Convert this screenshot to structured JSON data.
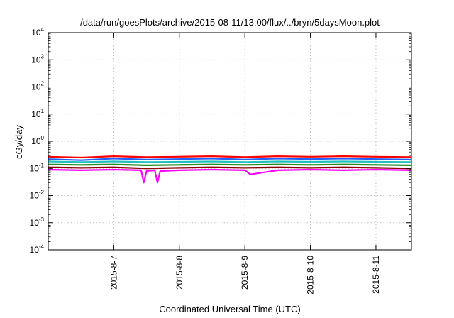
{
  "chart_data": {
    "type": "line",
    "title": "/data/run/goesPlots/archive/2015-08-11/13:00/flux/../bryn/5daysMoon.plot",
    "xlabel": "Coordinated Universal Time (UTC)",
    "ylabel": "cGy/day",
    "y_scale": "log",
    "ylim": [
      0.0001,
      10000
    ],
    "y_ticks": [
      {
        "base": "10",
        "exp": "-4",
        "value": 0.0001
      },
      {
        "base": "10",
        "exp": "-3",
        "value": 0.001
      },
      {
        "base": "10",
        "exp": "-2",
        "value": 0.01
      },
      {
        "base": "10",
        "exp": "-1",
        "value": 0.1
      },
      {
        "base": "10",
        "exp": "0",
        "value": 1
      },
      {
        "base": "10",
        "exp": "1",
        "value": 10
      },
      {
        "base": "10",
        "exp": "2",
        "value": 100
      },
      {
        "base": "10",
        "exp": "3",
        "value": 1000
      },
      {
        "base": "10",
        "exp": "4",
        "value": 10000
      }
    ],
    "xlim": [
      "2015-08-06 00:00",
      "2015-08-11 13:00"
    ],
    "x_ticks": [
      "2015-8-7",
      "2015-8-8",
      "2015-8-9",
      "2015-8-10",
      "2015-8-11"
    ],
    "grid": true,
    "series": [
      {
        "color": "#ff00ff",
        "x": [
          "2015-08-06 00:00",
          "2015-08-06 12:00",
          "2015-08-07 00:00",
          "2015-08-07 10:00",
          "2015-08-07 11:00",
          "2015-08-07 12:00",
          "2015-08-07 15:00",
          "2015-08-07 16:00",
          "2015-08-07 17:00",
          "2015-08-08 00:00",
          "2015-08-08 12:00",
          "2015-08-09 00:00",
          "2015-08-09 02:00",
          "2015-08-09 12:00",
          "2015-08-10 00:00",
          "2015-08-10 12:00",
          "2015-08-11 00:00",
          "2015-08-11 13:00"
        ],
        "y": [
          0.09,
          0.085,
          0.09,
          0.085,
          0.03,
          0.08,
          0.085,
          0.03,
          0.08,
          0.085,
          0.09,
          0.085,
          0.06,
          0.085,
          0.09,
          0.085,
          0.09,
          0.085
        ]
      },
      {
        "color": "#8b0000",
        "x": [
          "2015-08-06 00:00",
          "2015-08-06 12:00",
          "2015-08-07 00:00",
          "2015-08-07 12:00",
          "2015-08-08 00:00",
          "2015-08-08 12:00",
          "2015-08-09 00:00",
          "2015-08-09 12:00",
          "2015-08-10 00:00",
          "2015-08-10 12:00",
          "2015-08-11 00:00",
          "2015-08-11 13:00"
        ],
        "y": [
          0.11,
          0.105,
          0.11,
          0.1,
          0.105,
          0.11,
          0.105,
          0.11,
          0.105,
          0.11,
          0.105,
          0.1
        ]
      },
      {
        "color": "#228b22",
        "x": [
          "2015-08-06 00:00",
          "2015-08-06 12:00",
          "2015-08-07 00:00",
          "2015-08-07 12:00",
          "2015-08-08 00:00",
          "2015-08-08 12:00",
          "2015-08-09 00:00",
          "2015-08-09 12:00",
          "2015-08-10 00:00",
          "2015-08-10 12:00",
          "2015-08-11 00:00",
          "2015-08-11 13:00"
        ],
        "y": [
          0.14,
          0.135,
          0.14,
          0.13,
          0.135,
          0.14,
          0.135,
          0.14,
          0.135,
          0.14,
          0.135,
          0.13
        ]
      },
      {
        "color": "#20c0c0",
        "x": [
          "2015-08-06 00:00",
          "2015-08-06 12:00",
          "2015-08-07 00:00",
          "2015-08-07 12:00",
          "2015-08-08 00:00",
          "2015-08-08 12:00",
          "2015-08-09 00:00",
          "2015-08-09 12:00",
          "2015-08-10 00:00",
          "2015-08-10 12:00",
          "2015-08-11 00:00",
          "2015-08-11 13:00"
        ],
        "y": [
          0.18,
          0.17,
          0.18,
          0.17,
          0.175,
          0.18,
          0.17,
          0.18,
          0.175,
          0.18,
          0.175,
          0.17
        ]
      },
      {
        "color": "#ff0000",
        "x": [
          "2015-08-06 00:00",
          "2015-08-06 12:00",
          "2015-08-07 00:00",
          "2015-08-07 12:00",
          "2015-08-08 00:00",
          "2015-08-08 12:00",
          "2015-08-09 00:00",
          "2015-08-09 12:00",
          "2015-08-10 00:00",
          "2015-08-10 12:00",
          "2015-08-11 00:00",
          "2015-08-11 13:00"
        ],
        "y": [
          0.27,
          0.25,
          0.28,
          0.26,
          0.27,
          0.28,
          0.26,
          0.28,
          0.27,
          0.28,
          0.27,
          0.26
        ]
      },
      {
        "color": "#2060ff",
        "x": [
          "2015-08-06 00:00",
          "2015-08-06 12:00",
          "2015-08-07 00:00",
          "2015-08-07 12:00",
          "2015-08-08 00:00",
          "2015-08-08 12:00",
          "2015-08-09 00:00",
          "2015-08-09 12:00",
          "2015-08-10 00:00",
          "2015-08-10 12:00",
          "2015-08-11 00:00",
          "2015-08-11 13:00"
        ],
        "y": [
          0.22,
          0.2,
          0.23,
          0.21,
          0.22,
          0.23,
          0.21,
          0.23,
          0.22,
          0.23,
          0.22,
          0.21
        ]
      }
    ]
  }
}
